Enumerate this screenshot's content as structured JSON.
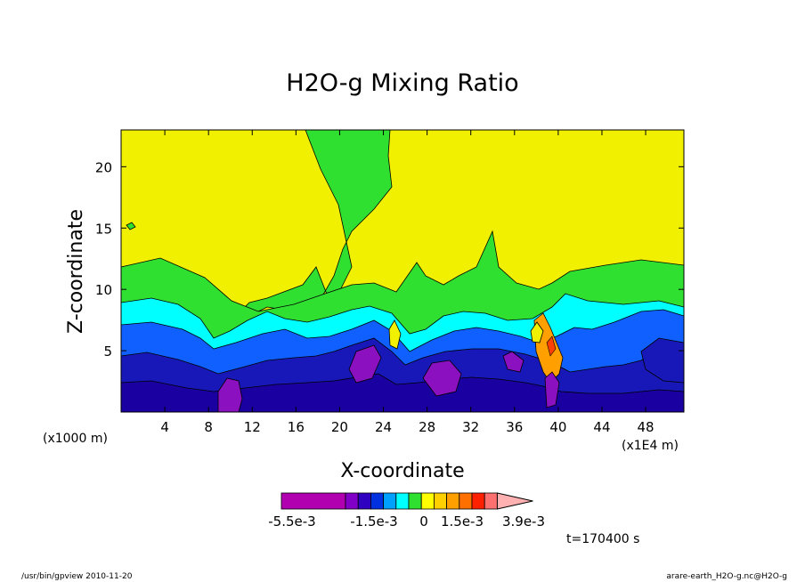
{
  "chart_data": {
    "type": "heatmap",
    "title": "H2O-g Mixing Ratio",
    "xlabel": "X-coordinate",
    "ylabel": "Z-coordinate",
    "x_scale_note": "(x1000 m)",
    "x_unit_note": "(x1E4 m)",
    "xlim": [
      0,
      51.5
    ],
    "ylim": [
      0,
      23
    ],
    "x_ticks": [
      "4",
      "8",
      "12",
      "16",
      "20",
      "24",
      "28",
      "32",
      "36",
      "40",
      "44",
      "48"
    ],
    "x_tick_values": [
      4,
      8,
      12,
      16,
      20,
      24,
      28,
      32,
      36,
      40,
      44,
      48
    ],
    "y_ticks": [
      "5",
      "10",
      "15",
      "20"
    ],
    "y_tick_values": [
      5,
      10,
      15,
      20
    ],
    "colorbar": {
      "labels": [
        "-5.5e-3",
        "-1.5e-3",
        "0",
        "1.5e-3",
        "3.9e-3"
      ],
      "colors": [
        "#b000b0",
        "#8000c8",
        "#3000c0",
        "#0030e0",
        "#00a0ff",
        "#00ffff",
        "#30e030",
        "#ffff00",
        "#ffd000",
        "#ffa000",
        "#ff7000",
        "#ff2000",
        "#ff7070",
        "#ffb0b0"
      ]
    },
    "levels": [
      {
        "name": "yellow",
        "color": "#f0f000"
      },
      {
        "name": "green",
        "color": "#30e030"
      },
      {
        "name": "cyan",
        "color": "#00ffff"
      },
      {
        "name": "blue",
        "color": "#1060ff"
      },
      {
        "name": "darkblue",
        "color": "#1818b8"
      },
      {
        "name": "navy",
        "color": "#1a00a0"
      },
      {
        "name": "purple",
        "color": "#8a10c0"
      }
    ],
    "grid": false,
    "time_label": "t=170400 s"
  },
  "footer": {
    "left": "/usr/bin/gpview  2010-11-20",
    "right": "arare-earth_H2O-g.nc@H2O-g"
  }
}
